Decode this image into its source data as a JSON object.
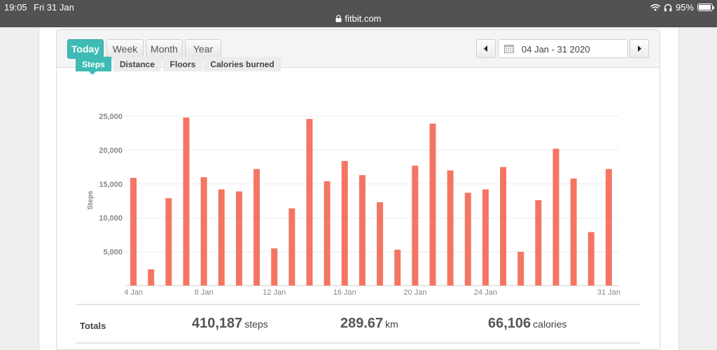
{
  "status": {
    "time": "19:05",
    "date": "Fri 31 Jan",
    "battery": "95%",
    "url": "fitbit.com"
  },
  "range_tabs": [
    "Today",
    "Week",
    "Month",
    "Year"
  ],
  "date_range": "04 Jan - 31 2020",
  "metric_tabs": [
    "Steps",
    "Distance",
    "Floors",
    "Calories burned"
  ],
  "totals": {
    "label": "Totals",
    "steps_value": "410,187",
    "steps_unit": "steps",
    "distance_value": "289.67",
    "distance_unit": "km",
    "calories_value": "66,106",
    "calories_unit": "calories"
  },
  "chart_data": {
    "type": "bar",
    "ylabel": "Steps",
    "ylim": [
      0,
      25000
    ],
    "yticks": [
      5000,
      10000,
      15000,
      20000,
      25000
    ],
    "ytick_labels": [
      "5,000",
      "10,000",
      "15,000",
      "20,000",
      "25,000"
    ],
    "xtick_labels": [
      {
        "index": 0,
        "label": "4 Jan"
      },
      {
        "index": 4,
        "label": "8 Jan"
      },
      {
        "index": 8,
        "label": "12 Jan"
      },
      {
        "index": 12,
        "label": "16 Jan"
      },
      {
        "index": 16,
        "label": "20 Jan"
      },
      {
        "index": 20,
        "label": "24 Jan"
      },
      {
        "index": 27,
        "label": "31 Jan"
      }
    ],
    "categories": [
      "4 Jan",
      "5 Jan",
      "6 Jan",
      "7 Jan",
      "8 Jan",
      "9 Jan",
      "10 Jan",
      "11 Jan",
      "12 Jan",
      "13 Jan",
      "14 Jan",
      "15 Jan",
      "16 Jan",
      "17 Jan",
      "18 Jan",
      "19 Jan",
      "20 Jan",
      "21 Jan",
      "22 Jan",
      "23 Jan",
      "24 Jan",
      "25 Jan",
      "26 Jan",
      "27 Jan",
      "28 Jan",
      "29 Jan",
      "30 Jan",
      "31 Jan"
    ],
    "values": [
      15900,
      2400,
      12900,
      24800,
      16000,
      14200,
      13900,
      17200,
      5500,
      11400,
      24600,
      15400,
      18400,
      16300,
      12300,
      5300,
      17700,
      23900,
      17000,
      13700,
      14200,
      17500,
      5000,
      12600,
      20200,
      15800,
      7900,
      17200
    ],
    "bar_color": "#f47563",
    "grid": true
  },
  "colors": {
    "accent": "#3ebbb4",
    "bar": "#f47563"
  }
}
